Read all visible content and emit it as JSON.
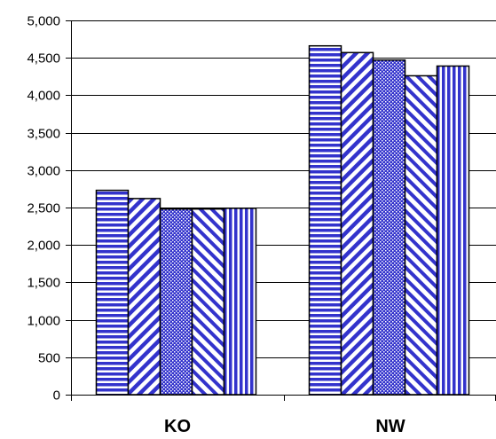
{
  "chart_data": {
    "type": "bar",
    "title": "",
    "xlabel": "",
    "ylabel": "",
    "categories": [
      "KO",
      "NW"
    ],
    "series": [
      {
        "values": [
          2730,
          4660
        ],
        "pattern": "horizontal-stripes"
      },
      {
        "values": [
          2620,
          4570
        ],
        "pattern": "diagonal-up-stripes"
      },
      {
        "values": [
          2480,
          4470
        ],
        "pattern": "dots"
      },
      {
        "values": [
          2480,
          4260
        ],
        "pattern": "diagonal-down-stripes"
      },
      {
        "values": [
          2490,
          4390
        ],
        "pattern": "vertical-stripes"
      }
    ],
    "ylim": [
      0,
      5000
    ],
    "yticks": [
      0,
      500,
      1000,
      1500,
      2000,
      2500,
      3000,
      3500,
      4000,
      4500,
      5000
    ],
    "ytick_labels": [
      "0",
      "500",
      "1,000",
      "1,500",
      "2,000",
      "2,500",
      "3,000",
      "3,500",
      "4,000",
      "4,500",
      "5,000"
    ],
    "grid": true,
    "legend": "none",
    "colors": {
      "bar_pattern": "#3333cc",
      "bar_fill": "#ffffff",
      "bar_edge": "#000000",
      "grid": "#000000"
    }
  }
}
